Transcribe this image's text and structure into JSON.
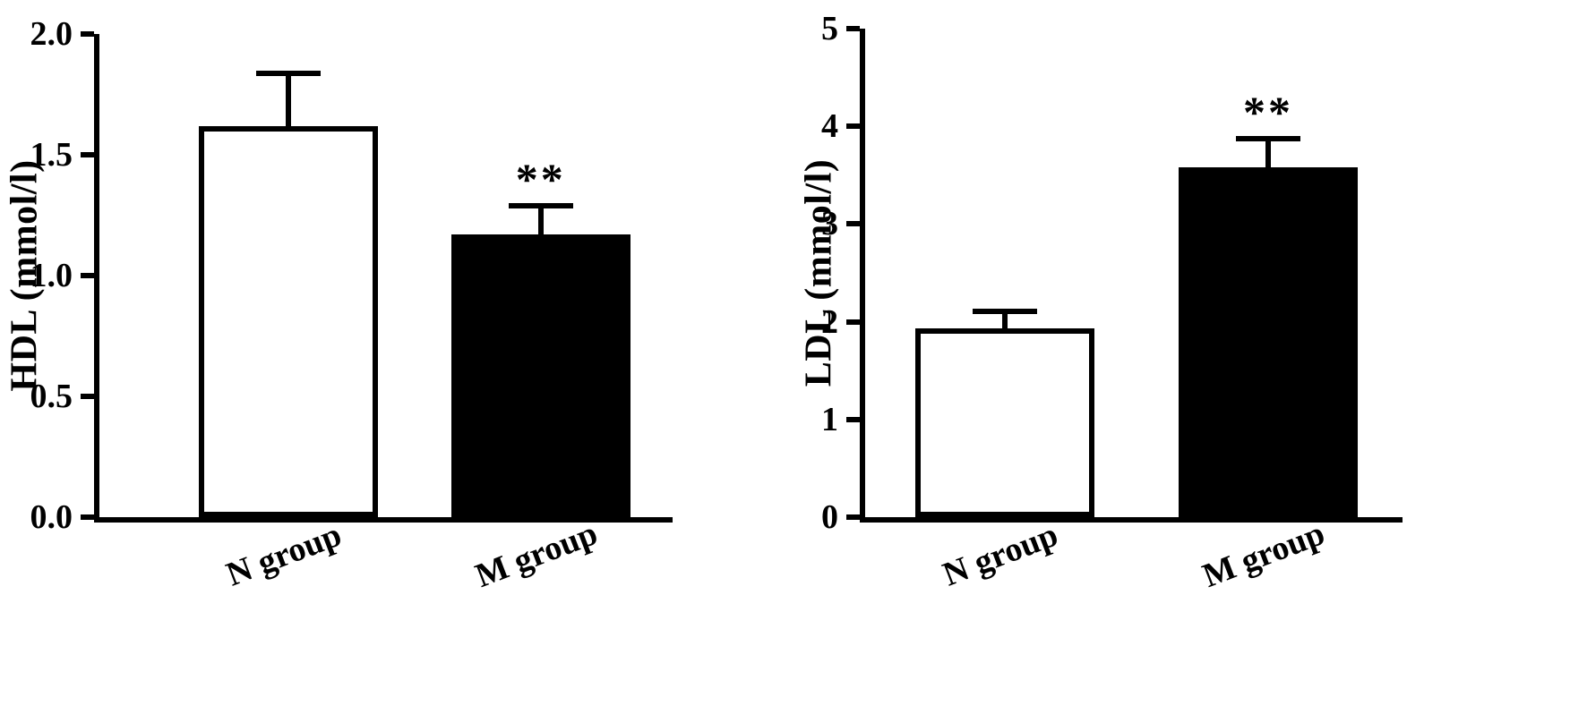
{
  "figure": {
    "background": "#ffffff",
    "axis_color": "#000000"
  },
  "chart_data": [
    {
      "type": "bar",
      "title": "",
      "xlabel": "",
      "ylabel": "HDL (mmol/l)",
      "categories": [
        "N group",
        "M group"
      ],
      "series": [
        {
          "name": "HDL",
          "values": [
            1.62,
            1.17
          ],
          "errors_upper": [
            0.23,
            0.13
          ]
        }
      ],
      "annotations": [
        "",
        "**"
      ],
      "bar_fill": [
        "#ffffff",
        "#000000"
      ],
      "bar_border": "#000000",
      "ylim": [
        0,
        2
      ],
      "yticks": [
        "0.0",
        "0.5",
        "1.0",
        "1.5",
        "2.0"
      ],
      "grid": false,
      "legend": "none",
      "error_bar_style": "upper-cap-only"
    },
    {
      "type": "bar",
      "title": "",
      "xlabel": "",
      "ylabel": "LDL (mmol/l)",
      "categories": [
        "N group",
        "M group"
      ],
      "series": [
        {
          "name": "LDL",
          "values": [
            1.93,
            3.58
          ],
          "errors_upper": [
            0.2,
            0.32
          ]
        }
      ],
      "annotations": [
        "",
        "**"
      ],
      "bar_fill": [
        "#ffffff",
        "#000000"
      ],
      "bar_border": "#000000",
      "ylim": [
        0,
        5
      ],
      "yticks": [
        "0",
        "1",
        "2",
        "3",
        "4",
        "5"
      ],
      "grid": false,
      "legend": "none",
      "error_bar_style": "upper-cap-only"
    }
  ]
}
